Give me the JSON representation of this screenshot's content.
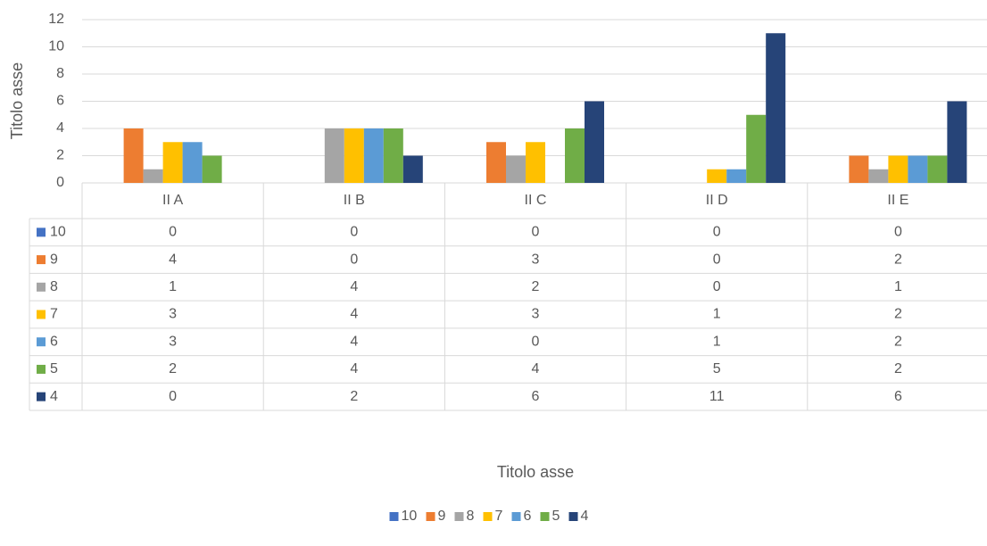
{
  "chart_data": {
    "type": "bar",
    "y_label": "Titolo asse",
    "x_label": "Titolo asse",
    "categories": [
      "II A",
      "II B",
      "II C",
      "II D",
      "II E"
    ],
    "series": [
      {
        "name": "10",
        "color": "#4472c4",
        "values": [
          0,
          0,
          0,
          0,
          0
        ]
      },
      {
        "name": "9",
        "color": "#ed7d31",
        "values": [
          4,
          0,
          3,
          0,
          2
        ]
      },
      {
        "name": "8",
        "color": "#a5a5a5",
        "values": [
          1,
          4,
          2,
          0,
          1
        ]
      },
      {
        "name": "7",
        "color": "#ffc000",
        "values": [
          3,
          4,
          3,
          1,
          2
        ]
      },
      {
        "name": "6",
        "color": "#5b9bd5",
        "values": [
          3,
          4,
          0,
          1,
          2
        ]
      },
      {
        "name": "5",
        "color": "#70ad47",
        "values": [
          2,
          4,
          4,
          5,
          2
        ]
      },
      {
        "name": "4",
        "color": "#264478",
        "values": [
          0,
          2,
          6,
          11,
          6
        ]
      }
    ],
    "ylim": [
      0,
      12
    ],
    "yticks": [
      0,
      2,
      4,
      6,
      8,
      10,
      12
    ],
    "grid": true,
    "legend": "bottom",
    "data_table": true
  }
}
